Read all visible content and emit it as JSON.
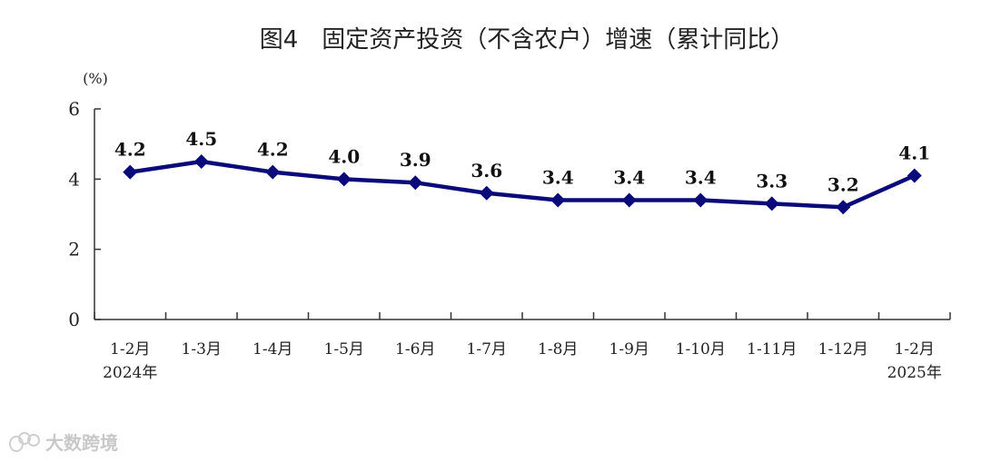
{
  "chart_data": {
    "type": "line",
    "title": "图4　固定资产投资（不含农户）增速（累计同比）",
    "unit": "(%)",
    "categories": [
      "1-2月",
      "1-3月",
      "1-4月",
      "1-5月",
      "1-6月",
      "1-7月",
      "1-8月",
      "1-9月",
      "1-10月",
      "1-11月",
      "1-12月",
      "1-2月"
    ],
    "category_sublabels": {
      "0": "2024年",
      "11": "2025年"
    },
    "series": [
      {
        "values": [
          4.2,
          4.5,
          4.2,
          4.0,
          3.9,
          3.6,
          3.4,
          3.4,
          3.4,
          3.3,
          3.2,
          4.1
        ],
        "value_labels": [
          "4.2",
          "4.5",
          "4.2",
          "4.0",
          "3.9",
          "3.6",
          "3.4",
          "3.4",
          "3.4",
          "3.3",
          "3.2",
          "4.1"
        ],
        "color": "#0a0a7a",
        "marker": "diamond"
      }
    ],
    "yticks": [
      "0",
      "2",
      "4",
      "6"
    ],
    "ylim": [
      0,
      6
    ],
    "grid": false,
    "legend": "none"
  },
  "watermark": {
    "text": "大数跨境",
    "icon": "logo-icon"
  }
}
